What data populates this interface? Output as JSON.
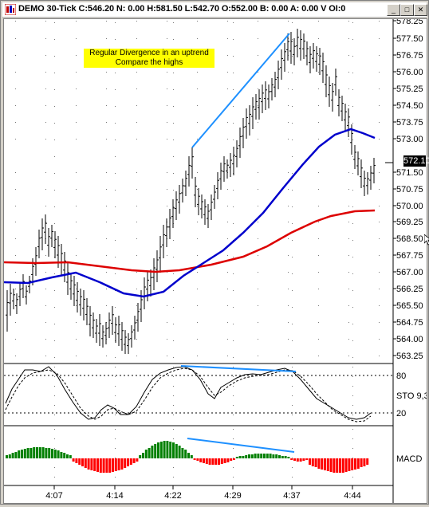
{
  "window": {
    "title": "DEMO 30-Tick C:546.20 N: 0.00 H:581.50 L:542.70 O:552.00 B: 0.00 A: 0.00 V OI:0",
    "buttons": {
      "minimize": "_",
      "maximize": "□",
      "close": "✕"
    },
    "icon": "chart-app-icon"
  },
  "annotation": {
    "line1": "Regular Divergence in an uptrend",
    "line2": "Compare the highs",
    "color": "#ffff00"
  },
  "price_axis": {
    "labels": [
      "578.25",
      "577.50",
      "576.75",
      "576.00",
      "575.25",
      "574.50",
      "573.75",
      "573.00",
      "571.50",
      "570.75",
      "570.00",
      "569.25",
      "568.50",
      "567.75",
      "567.00",
      "566.25",
      "565.50",
      "564.75",
      "564.00",
      "563.25"
    ],
    "current_price": "572.10"
  },
  "time_axis": {
    "labels": [
      "4:07",
      "4:14",
      "4:22",
      "4:29",
      "4:37",
      "4:44"
    ]
  },
  "stochastic": {
    "label": "STO 9,3",
    "levels": [
      "80",
      "20"
    ]
  },
  "macd": {
    "label": "MACD"
  },
  "colors": {
    "fast_ma": "#0000cc",
    "slow_ma": "#dd0000",
    "divergence_line": "#1e90ff",
    "macd_positive": "#008000",
    "macd_negative": "#ff0000",
    "bars": "#000000"
  }
}
